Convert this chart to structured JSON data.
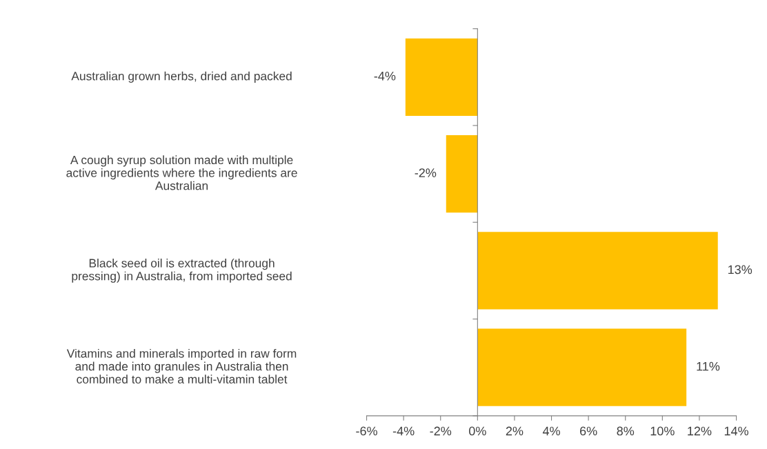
{
  "chart_data": {
    "type": "bar",
    "orientation": "horizontal",
    "categories": [
      "Australian grown herbs, dried and packed",
      "A cough syrup solution made with multiple active ingredients where the ingredients are Australian",
      "Black seed oil is extracted (through pressing) in Australia, from imported seed",
      "Vitamins and minerals imported in raw form and made into granules in Australia then combined to make a multi-vitamin tablet"
    ],
    "values": [
      -3.9,
      -1.7,
      13.0,
      11.3
    ],
    "value_labels": [
      "-4%",
      "-2%",
      "13%",
      "11%"
    ],
    "color": "#ffc000",
    "xlim": [
      -6,
      14
    ],
    "xticks": [
      {
        "value": -6,
        "label": "-6%"
      },
      {
        "value": -4,
        "label": "-4%"
      },
      {
        "value": -2,
        "label": "-2%"
      },
      {
        "value": 0,
        "label": "0%"
      },
      {
        "value": 2,
        "label": "2%"
      },
      {
        "value": 4,
        "label": "4%"
      },
      {
        "value": 6,
        "label": "6%"
      },
      {
        "value": 8,
        "label": "8%"
      },
      {
        "value": 10,
        "label": "10%"
      },
      {
        "value": 12,
        "label": "12%"
      },
      {
        "value": 14,
        "label": "14%"
      }
    ],
    "legend": false
  }
}
